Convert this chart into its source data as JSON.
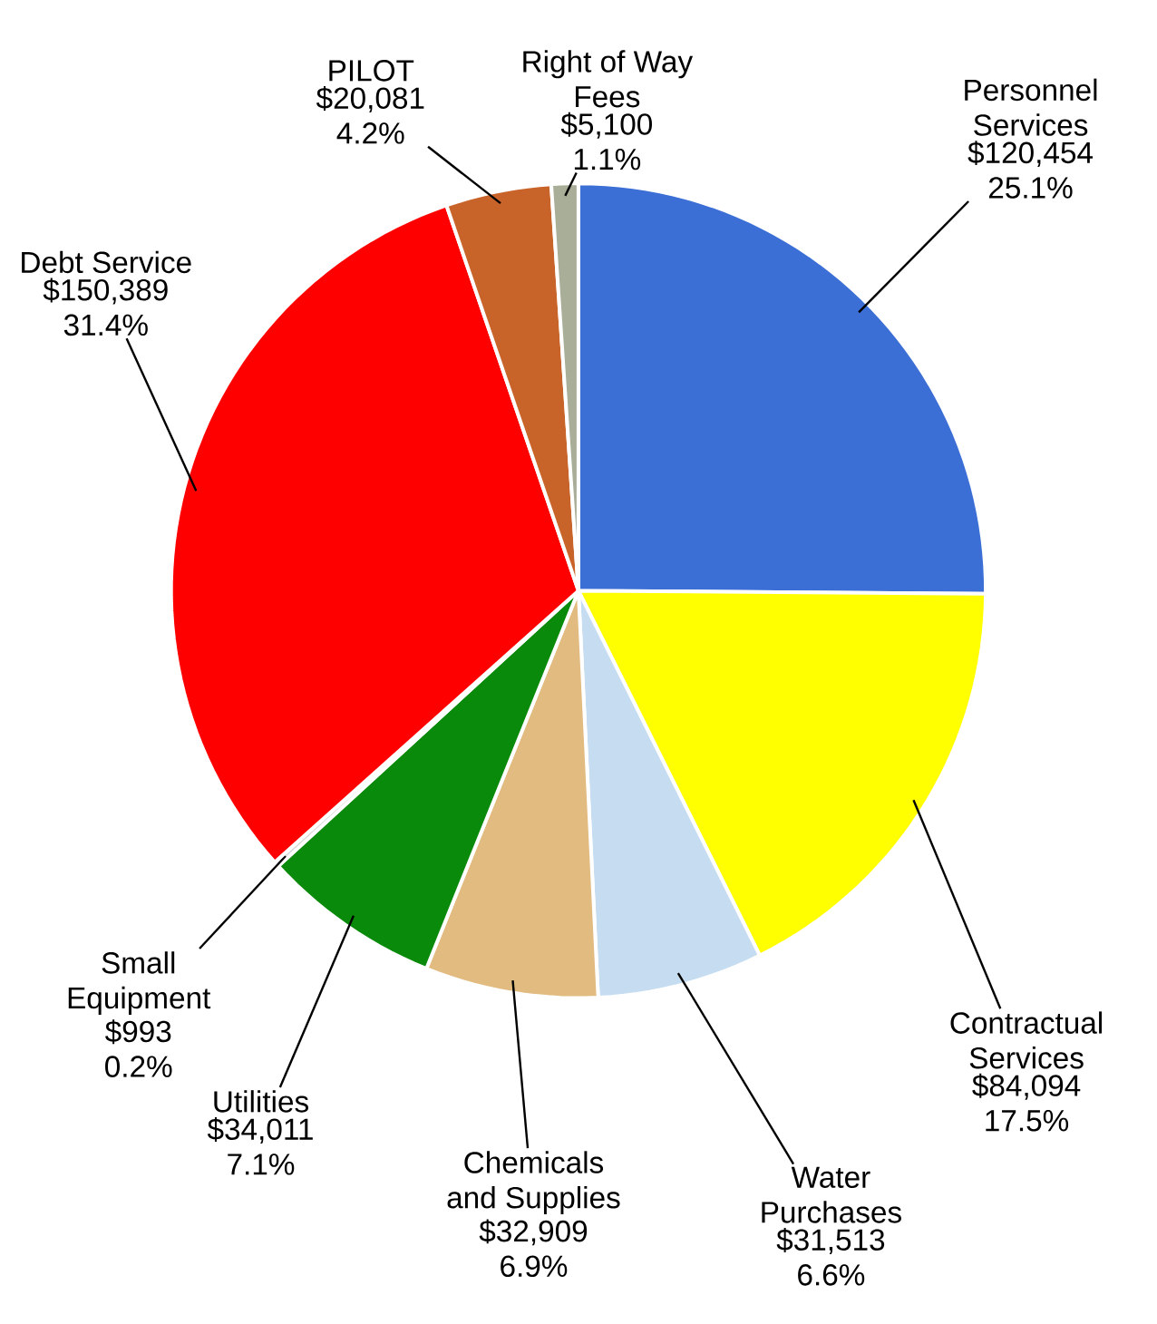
{
  "chart_data": {
    "type": "pie",
    "categories": [
      "Personnel Services",
      "Contractual Services",
      "Water Purchases",
      "Chemicals and Supplies",
      "Utilities",
      "Small Equipment",
      "Debt Service",
      "PILOT",
      "Right of Way Fees"
    ],
    "values": [
      120454,
      84094,
      31513,
      32909,
      34011,
      993,
      150389,
      20081,
      5100
    ],
    "value_labels": [
      "$120,454 25.1%",
      "$84,094 17.5%",
      "$31,513 6.6%",
      "$32,909 6.9%",
      "$34,011 7.1%",
      "$993 0.2%",
      "$150,389 31.4%",
      "$20,081 4.2%",
      "$5,100 1.1%"
    ],
    "colors": [
      "#3b6fd6",
      "#ffff00",
      "#c6dcf0",
      "#e2bb80",
      "#0a8a0a",
      "#d8d8d8",
      "#ff0000",
      "#c8642a",
      "#a8ae98"
    ]
  }
}
